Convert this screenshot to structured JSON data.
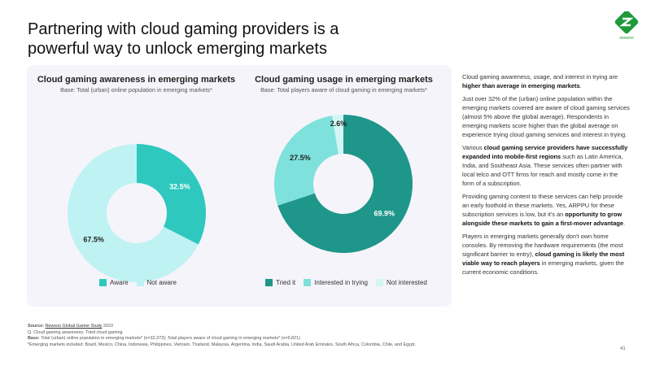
{
  "title": "Partnering with cloud gaming providers is a powerful way to unlock emerging markets",
  "logo_text": "newzoo",
  "colors": {
    "aware": "#2ec8bf",
    "not_aware": "#bff2f3",
    "tried": "#1e968a",
    "interested": "#7ee1dc",
    "not_interested": "#d3f6f4"
  },
  "chart_data": [
    {
      "type": "pie",
      "title": "Cloud gaming awareness in emerging markets",
      "subtitle": "Base: Total (urban) online population in emerging markets*",
      "categories": [
        "Aware",
        "Not aware"
      ],
      "values": [
        32.5,
        67.5
      ],
      "labels": [
        "32.5%",
        "67.5%"
      ],
      "legend": "bottom"
    },
    {
      "type": "pie",
      "title": "Cloud gaming usage in emerging markets",
      "subtitle": "Base: Total players aware of cloud gaming in emerging markets*",
      "categories": [
        "Tried it",
        "Interested in trying",
        "Not interested"
      ],
      "values": [
        69.9,
        27.5,
        2.6
      ],
      "labels": [
        "69.9%",
        "27.5%",
        "2.6%"
      ],
      "legend": "bottom"
    }
  ],
  "side": [
    [
      {
        "t": "Cloud gaming awareness, usage, and interest in trying are "
      },
      {
        "t": "higher than average in emerging markets",
        "b": 1
      },
      {
        "t": "."
      }
    ],
    [
      {
        "t": "Just over 32% of the (urban) online population within the emerging markets covered are aware of cloud gaming services (almost 5% above the global average). Respondents in emerging markets score higher than the global average on experience trying cloud gaming services and interest in trying."
      }
    ],
    [
      {
        "t": "Various "
      },
      {
        "t": "cloud gaming service providers have successfully expanded into mobile-first regions",
        "b": 1
      },
      {
        "t": " such as Latin America, India, and Southeast Asia. These services often partner with local telco and OTT firms for reach and mostly come in the form of a subscription."
      }
    ],
    [
      {
        "t": "Providing gaming content to these services can help provide an early foothold in these markets. Yes, ARPPU for these subscription services is low, but it's an "
      },
      {
        "t": "opportunity to grow alongside these markets to gain a first-mover advantage",
        "b": 1
      },
      {
        "t": "."
      }
    ],
    [
      {
        "t": "Players in emerging markets generally don't own home consoles. By removing the hardware requirements (the most significant barrier to entry), "
      },
      {
        "t": "cloud gaming is likely the most viable way to reach players",
        "b": 1
      },
      {
        "t": " in emerging markets, given the current economic conditions."
      }
    ]
  ],
  "footer": {
    "source_label": "Source: ",
    "source_link": "Newzoo Global Gamer Study",
    "source_year": " 2023",
    "q": "Q. Cloud gaming awareness; Tried cloud gaming",
    "base_label": "Base: ",
    "base": "Total (urban) online population in emerging markets* (n=32,373); Total players aware of cloud gaming in emerging markets* (n=9,821)",
    "note": "*Emerging markets included: Brazil, Mexico, China, Indonesia, Philippines, Vietnam, Thailand, Malaysia, Argentina, India, Saudi Arabia, United Arab Emirates, South Africa, Colombia, Chile, and Egypt."
  },
  "page_number": "41"
}
